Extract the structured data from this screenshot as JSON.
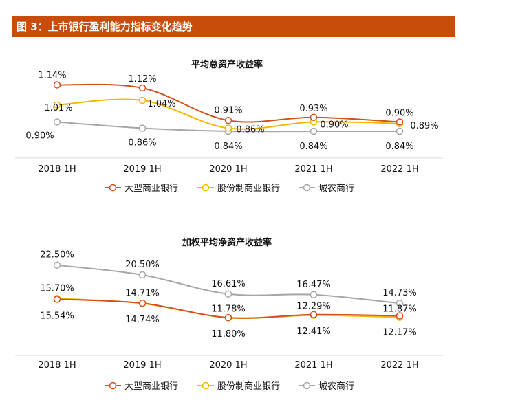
{
  "figure_title": "图 3：上市银行盈利能力指标变化趋势",
  "colors": {
    "header_bg": "#c84d0b",
    "large": "#d4501a",
    "joint": "#f5b800",
    "rural": "#a6a6a6"
  },
  "legend": [
    "大型商业银行",
    "股份制商业银行",
    "城农商行"
  ],
  "chart_data": [
    {
      "type": "line",
      "title": "平均总资产收益率",
      "categories": [
        "2018 1H",
        "2019 1H",
        "2020 1H",
        "2021 1H",
        "2022 1H"
      ],
      "ylim": [
        0.8,
        1.2
      ],
      "grid": false,
      "legend_position": "bottom",
      "series": [
        {
          "name": "大型商业银行",
          "values": [
            1.14,
            1.12,
            0.91,
            0.93,
            0.9
          ],
          "labels": [
            "1.14%",
            "1.12%",
            "0.91%",
            "0.93%",
            "0.90%"
          ]
        },
        {
          "name": "股份制商业银行",
          "values": [
            1.01,
            1.04,
            0.86,
            0.9,
            0.89
          ],
          "labels": [
            "1.01%",
            "1.04%",
            "0.86%",
            "0.90%",
            "0.89%"
          ]
        },
        {
          "name": "城农商行",
          "values": [
            0.9,
            0.86,
            0.84,
            0.84,
            0.84
          ],
          "labels": [
            "0.90%",
            "0.86%",
            "0.84%",
            "0.84%",
            "0.84%"
          ]
        }
      ]
    },
    {
      "type": "line",
      "title": "加权平均净资产收益率",
      "categories": [
        "2018 1H",
        "2019 1H",
        "2020 1H",
        "2021 1H",
        "2022 1H"
      ],
      "ylim": [
        10,
        24
      ],
      "grid": false,
      "legend_position": "bottom",
      "series": [
        {
          "name": "大型商业银行",
          "values": [
            15.54,
            14.74,
            11.8,
            12.41,
            12.17
          ],
          "labels": [
            "15.54%",
            "14.74%",
            "11.80%",
            "12.41%",
            "12.17%"
          ]
        },
        {
          "name": "股份制商业银行",
          "values": [
            15.7,
            14.71,
            11.78,
            12.29,
            11.87
          ],
          "labels": [
            "15.70%",
            "14.71%",
            "11.78%",
            "12.29%",
            "11.87%"
          ]
        },
        {
          "name": "城农商行",
          "values": [
            22.5,
            20.5,
            16.61,
            16.47,
            14.73
          ],
          "labels": [
            "22.50%",
            "20.50%",
            "16.61%",
            "16.47%",
            "14.73%"
          ]
        }
      ]
    }
  ]
}
